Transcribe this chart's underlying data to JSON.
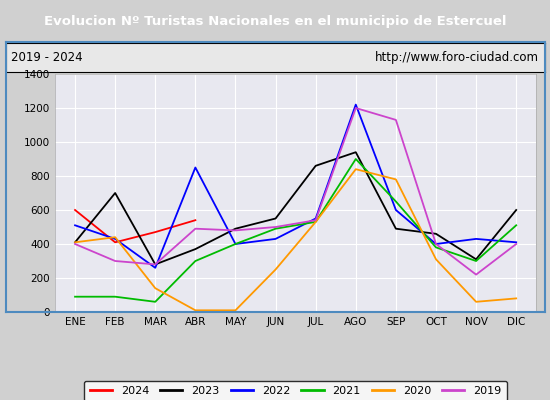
{
  "title": "Evolucion Nº Turistas Nacionales en el municipio de Estercuel",
  "subtitle_left": "2019 - 2024",
  "subtitle_right": "http://www.foro-ciudad.com",
  "title_bg": "#4d8abf",
  "title_color": "white",
  "months": [
    "ENE",
    "FEB",
    "MAR",
    "ABR",
    "MAY",
    "JUN",
    "JUL",
    "AGO",
    "SEP",
    "OCT",
    "NOV",
    "DIC"
  ],
  "ylim": [
    0,
    1400
  ],
  "yticks": [
    0,
    200,
    400,
    600,
    800,
    1000,
    1200,
    1400
  ],
  "series": {
    "2024": {
      "color": "#ff0000",
      "data": [
        600,
        410,
        470,
        540,
        null,
        null,
        null,
        null,
        null,
        null,
        null,
        null
      ]
    },
    "2023": {
      "color": "#000000",
      "data": [
        410,
        700,
        280,
        370,
        490,
        550,
        860,
        940,
        490,
        460,
        310,
        600
      ]
    },
    "2022": {
      "color": "#0000ff",
      "data": [
        510,
        430,
        260,
        850,
        400,
        430,
        550,
        1220,
        600,
        400,
        430,
        410
      ]
    },
    "2021": {
      "color": "#00bb00",
      "data": [
        90,
        90,
        60,
        300,
        400,
        490,
        530,
        900,
        650,
        380,
        300,
        510
      ]
    },
    "2020": {
      "color": "#ff9900",
      "data": [
        410,
        440,
        140,
        10,
        10,
        250,
        530,
        840,
        780,
        310,
        60,
        80
      ]
    },
    "2019": {
      "color": "#cc44cc",
      "data": [
        400,
        300,
        280,
        490,
        480,
        500,
        540,
        1200,
        1130,
        400,
        220,
        400
      ]
    }
  },
  "legend_order": [
    "2024",
    "2023",
    "2022",
    "2021",
    "2020",
    "2019"
  ],
  "outer_bg": "#d0d0d0",
  "inner_bg": "#e8e8e8",
  "plot_bg": "#e8e8f0",
  "grid_color": "#ffffff"
}
